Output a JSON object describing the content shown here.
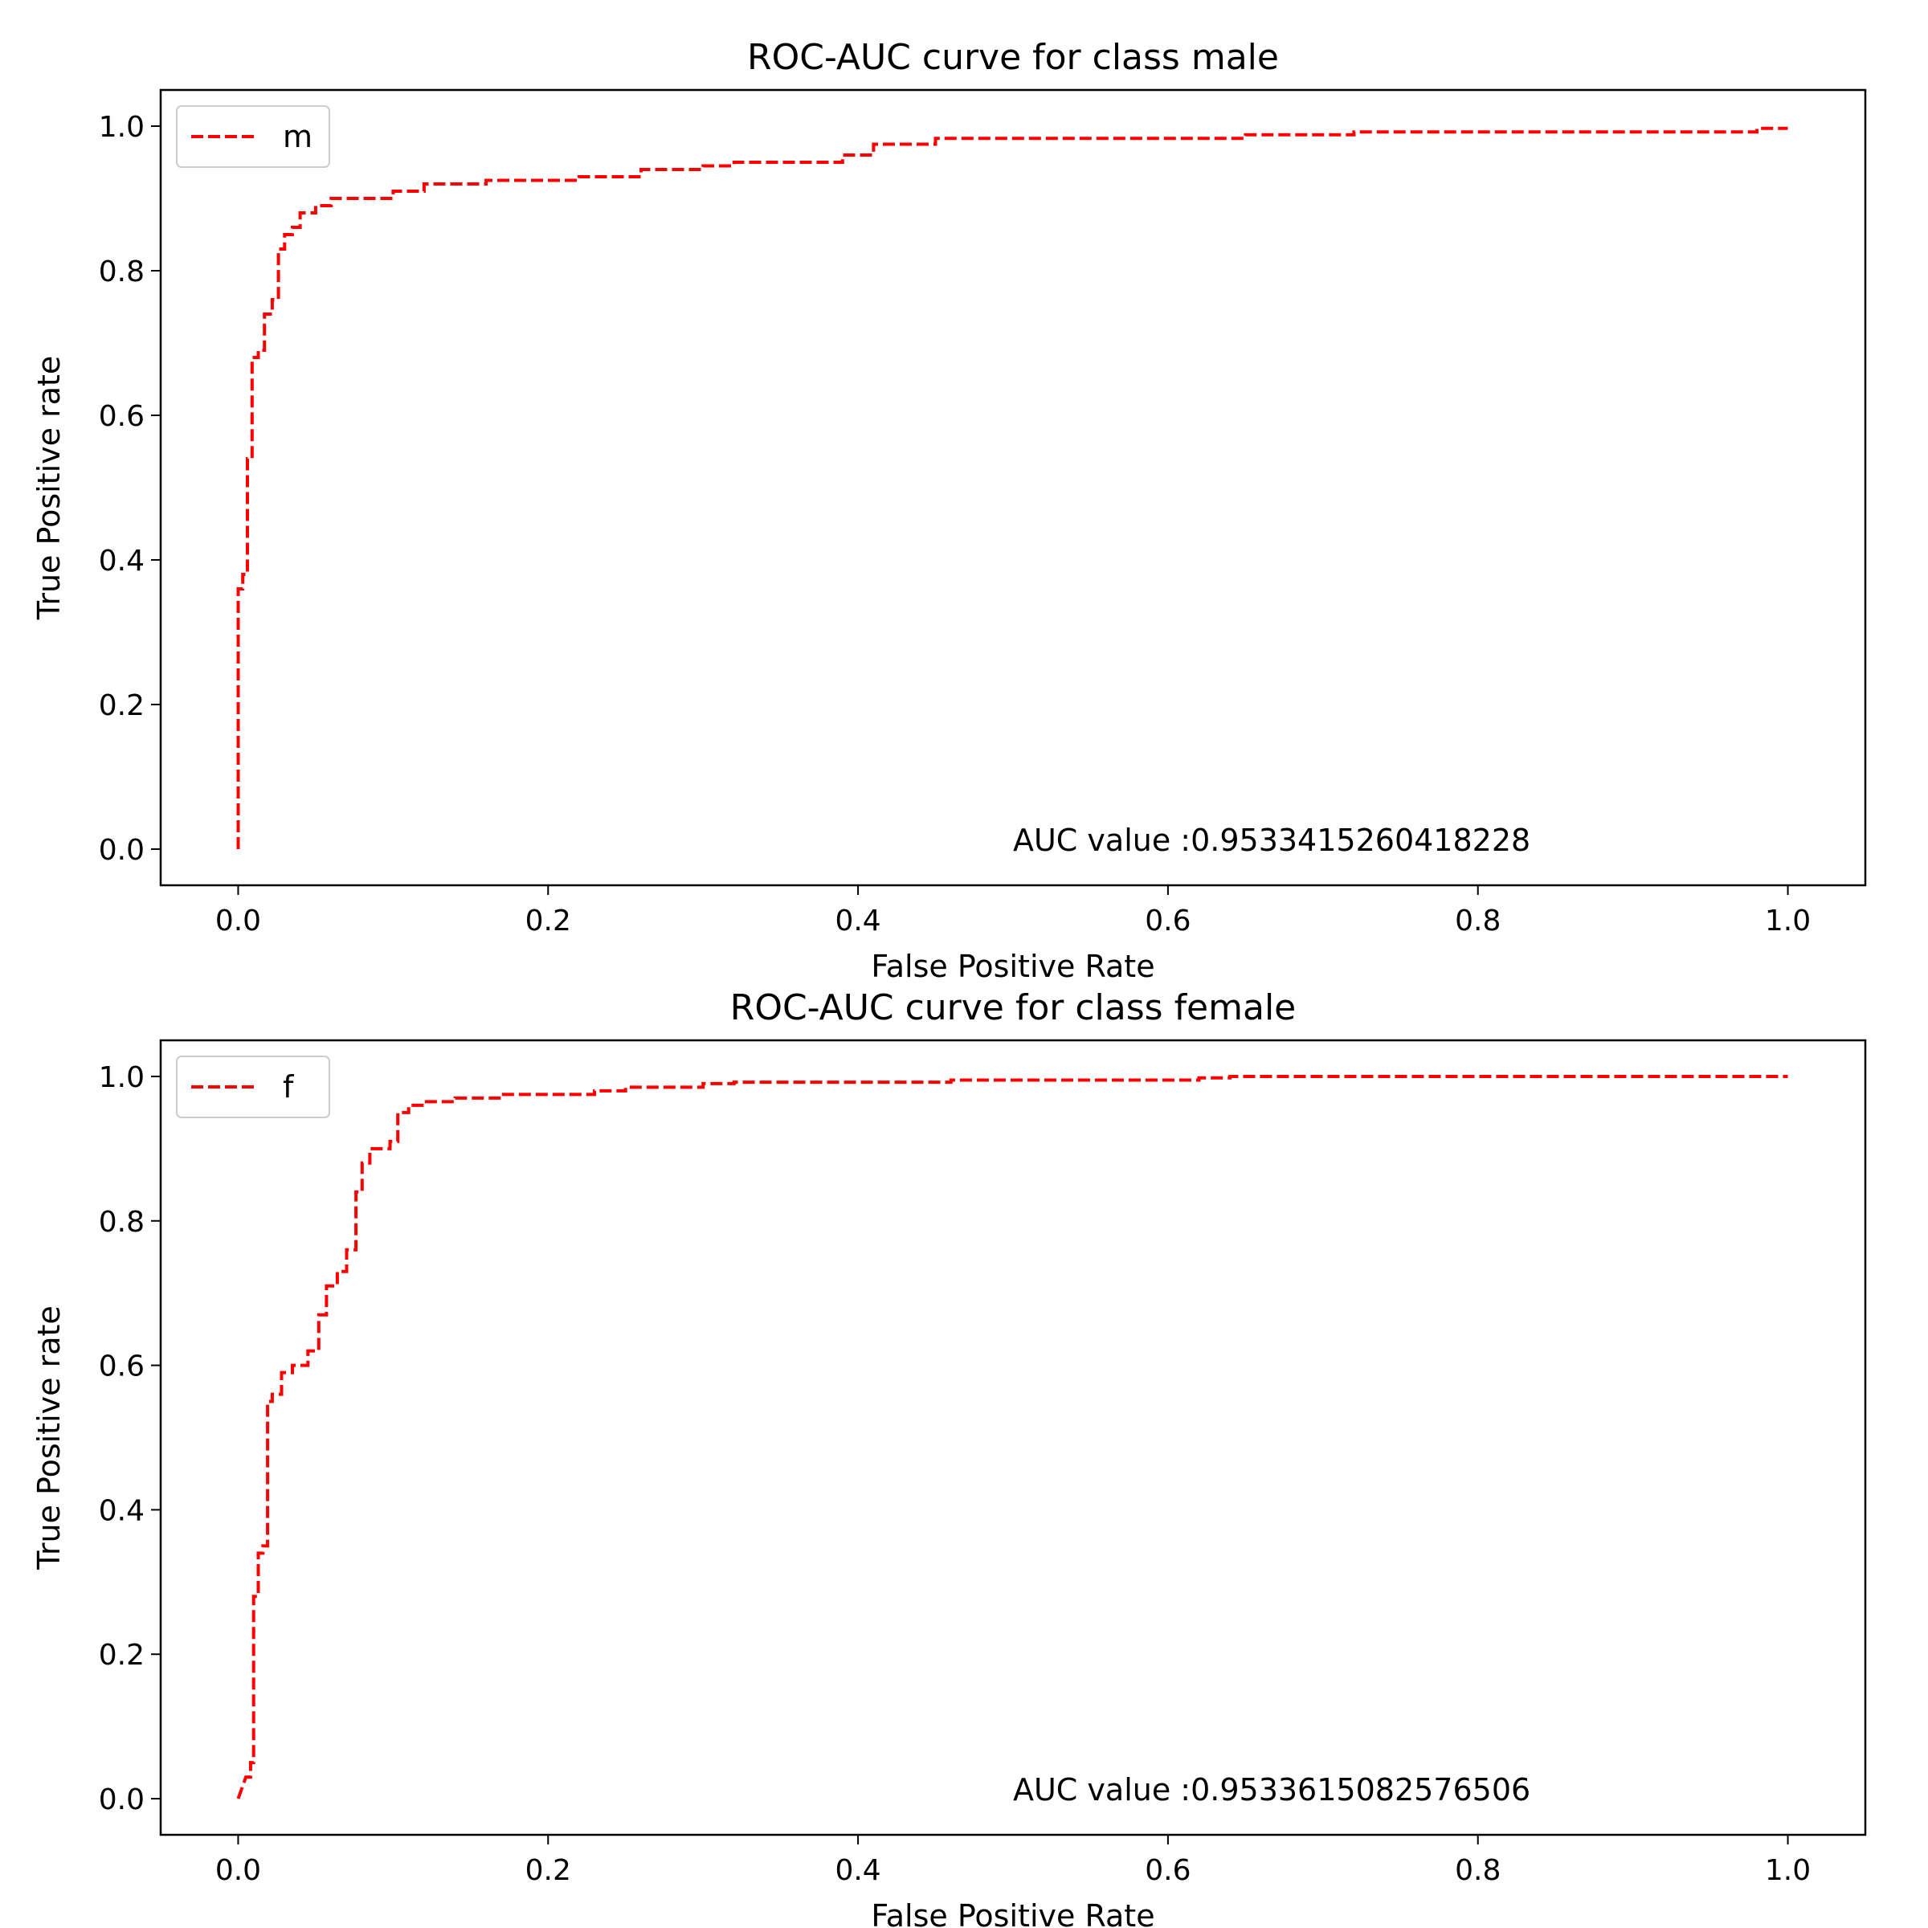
{
  "chart_data": [
    {
      "type": "line",
      "title": "ROC-AUC curve for class male",
      "xlabel": "False Positive Rate",
      "ylabel": "True Positive rate",
      "xlim": [
        -0.05,
        1.05
      ],
      "ylim": [
        -0.05,
        1.05
      ],
      "xticks": [
        "0.0",
        "0.2",
        "0.4",
        "0.6",
        "0.8",
        "1.0"
      ],
      "yticks": [
        "0.0",
        "0.2",
        "0.4",
        "0.6",
        "0.8",
        "1.0"
      ],
      "legend_placement": "upper left",
      "annotation": "AUC value :0.9533415260418228",
      "series": [
        {
          "name": "m",
          "color": "#ff0000",
          "linestyle": "dashed",
          "x": [
            0.0,
            0.0,
            0.003,
            0.003,
            0.006,
            0.006,
            0.009,
            0.009,
            0.013,
            0.013,
            0.017,
            0.017,
            0.022,
            0.022,
            0.026,
            0.026,
            0.03,
            0.03,
            0.035,
            0.035,
            0.04,
            0.04,
            0.05,
            0.05,
            0.06,
            0.06,
            0.1,
            0.1,
            0.12,
            0.12,
            0.16,
            0.16,
            0.22,
            0.22,
            0.26,
            0.26,
            0.3,
            0.3,
            0.32,
            0.32,
            0.39,
            0.39,
            0.41,
            0.41,
            0.45,
            0.45,
            0.65,
            0.65,
            0.72,
            0.72,
            0.98,
            0.98,
            1.0
          ],
          "y": [
            0.0,
            0.36,
            0.36,
            0.38,
            0.38,
            0.54,
            0.54,
            0.68,
            0.68,
            0.69,
            0.69,
            0.74,
            0.74,
            0.76,
            0.76,
            0.83,
            0.83,
            0.85,
            0.85,
            0.86,
            0.86,
            0.88,
            0.88,
            0.89,
            0.89,
            0.9,
            0.9,
            0.91,
            0.91,
            0.92,
            0.92,
            0.925,
            0.925,
            0.93,
            0.93,
            0.94,
            0.94,
            0.945,
            0.945,
            0.95,
            0.95,
            0.96,
            0.96,
            0.975,
            0.975,
            0.983,
            0.983,
            0.988,
            0.988,
            0.992,
            0.992,
            0.997,
            0.997
          ]
        }
      ]
    },
    {
      "type": "line",
      "title": "ROC-AUC curve for class female",
      "xlabel": "False Positive Rate",
      "ylabel": "True Positive rate",
      "xlim": [
        -0.05,
        1.05
      ],
      "ylim": [
        -0.05,
        1.05
      ],
      "xticks": [
        "0.0",
        "0.2",
        "0.4",
        "0.6",
        "0.8",
        "1.0"
      ],
      "yticks": [
        "0.0",
        "0.2",
        "0.4",
        "0.6",
        "0.8",
        "1.0"
      ],
      "legend_placement": "upper left",
      "annotation": "AUC value :0.9533615082576506",
      "series": [
        {
          "name": "f",
          "color": "#ff0000",
          "linestyle": "dashed",
          "x": [
            0.0,
            0.005,
            0.008,
            0.008,
            0.01,
            0.01,
            0.013,
            0.013,
            0.016,
            0.016,
            0.019,
            0.019,
            0.022,
            0.022,
            0.028,
            0.028,
            0.035,
            0.035,
            0.045,
            0.045,
            0.052,
            0.052,
            0.057,
            0.057,
            0.064,
            0.064,
            0.07,
            0.07,
            0.076,
            0.076,
            0.08,
            0.08,
            0.085,
            0.085,
            0.098,
            0.098,
            0.103,
            0.103,
            0.11,
            0.11,
            0.12,
            0.12,
            0.14,
            0.14,
            0.17,
            0.17,
            0.23,
            0.23,
            0.25,
            0.25,
            0.3,
            0.3,
            0.32,
            0.32,
            0.46,
            0.46,
            0.62,
            0.62,
            0.64,
            0.64,
            1.0
          ],
          "y": [
            0.0,
            0.03,
            0.03,
            0.05,
            0.05,
            0.28,
            0.28,
            0.34,
            0.34,
            0.35,
            0.35,
            0.55,
            0.55,
            0.56,
            0.56,
            0.59,
            0.59,
            0.6,
            0.6,
            0.62,
            0.62,
            0.67,
            0.67,
            0.71,
            0.71,
            0.73,
            0.73,
            0.76,
            0.76,
            0.84,
            0.84,
            0.88,
            0.88,
            0.9,
            0.9,
            0.91,
            0.91,
            0.95,
            0.95,
            0.96,
            0.96,
            0.965,
            0.965,
            0.97,
            0.97,
            0.975,
            0.975,
            0.98,
            0.98,
            0.985,
            0.985,
            0.99,
            0.99,
            0.992,
            0.992,
            0.995,
            0.995,
            0.998,
            0.998,
            1.0,
            1.0
          ]
        }
      ]
    }
  ]
}
